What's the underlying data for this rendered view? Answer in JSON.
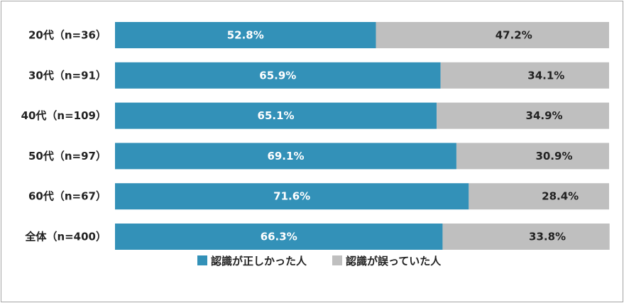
{
  "chart_data": {
    "type": "bar",
    "orientation": "horizontal",
    "stacked": "100%",
    "categories": [
      "20代（n=36）",
      "30代（n=91）",
      "40代（n=109）",
      "50代（n=97）",
      "60代（n=67）",
      "全体（n=400）"
    ],
    "series": [
      {
        "name": "認識が正しかった人",
        "color": "#3391b8",
        "values": [
          52.8,
          65.9,
          65.1,
          69.1,
          71.6,
          66.3
        ],
        "labels": [
          "52.8%",
          "65.9%",
          "65.1%",
          "69.1%",
          "71.6%",
          "66.3%"
        ]
      },
      {
        "name": "認識が誤っていた人",
        "color": "#bfbfbf",
        "values": [
          47.2,
          34.1,
          34.9,
          30.9,
          28.4,
          33.8
        ],
        "labels": [
          "47.2%",
          "34.1%",
          "34.9%",
          "30.9%",
          "28.4%",
          "33.8%"
        ]
      }
    ],
    "xlim": [
      0,
      100
    ],
    "grid": false,
    "legend_position": "bottom"
  }
}
